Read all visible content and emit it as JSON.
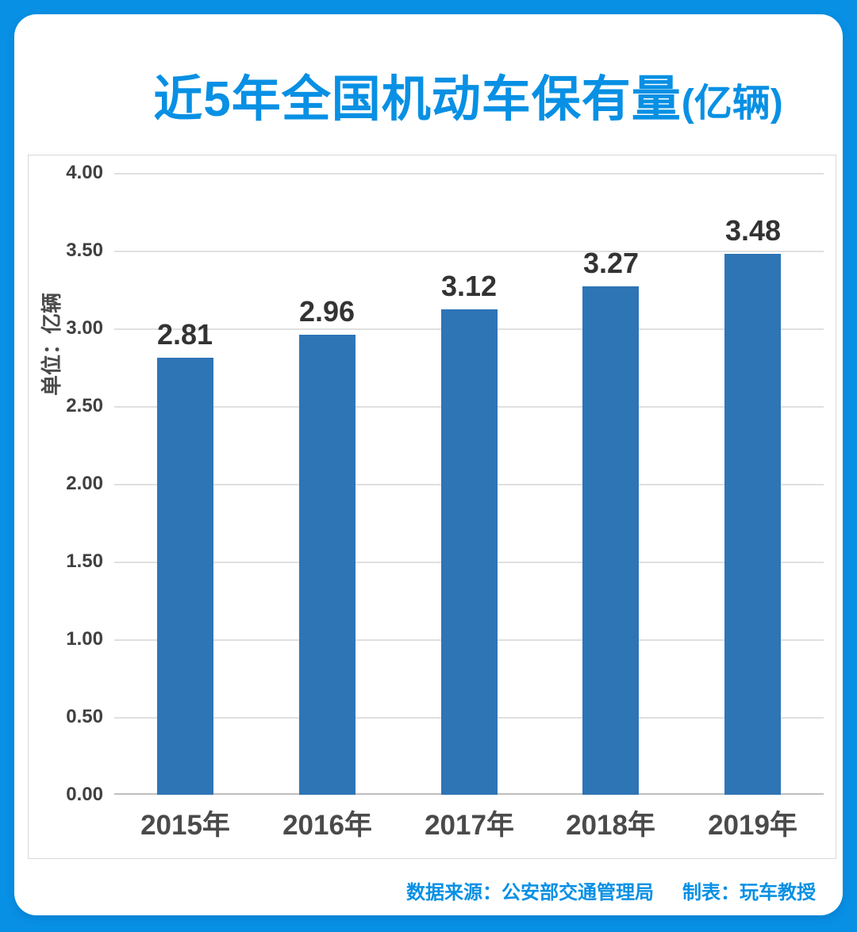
{
  "colors": {
    "brand_blue": "#0890E4",
    "bar_blue": "#2E75B6",
    "gridline": "#E0E0E0",
    "axis_line": "#BFBFBF",
    "chart_border": "#D9D9D9",
    "text_dark": "#404040"
  },
  "title": {
    "main": "近5年全国机动车保有量",
    "suffix": "(亿辆)"
  },
  "chart_data": {
    "type": "bar",
    "categories": [
      "2015年",
      "2016年",
      "2017年",
      "2018年",
      "2019年"
    ],
    "values": [
      2.81,
      2.96,
      3.12,
      3.27,
      3.48
    ],
    "value_labels": [
      "2.81",
      "2.96",
      "3.12",
      "3.27",
      "3.48"
    ],
    "title": "近5年全国机动车保有量(亿辆)",
    "xlabel": "",
    "ylabel": "单位：亿辆",
    "ylim": [
      0,
      4
    ],
    "ytick_step": 0.5,
    "ytick_labels": [
      "4.00",
      "3.50",
      "3.00",
      "2.50",
      "2.00",
      "1.50",
      "1.00",
      "0.50",
      "0.00"
    ],
    "grid": true,
    "legend_position": "none",
    "bar_color": "#2E75B6"
  },
  "footer": {
    "source": "数据来源：公安部交通管理局",
    "credit": "制表：玩车教授"
  }
}
